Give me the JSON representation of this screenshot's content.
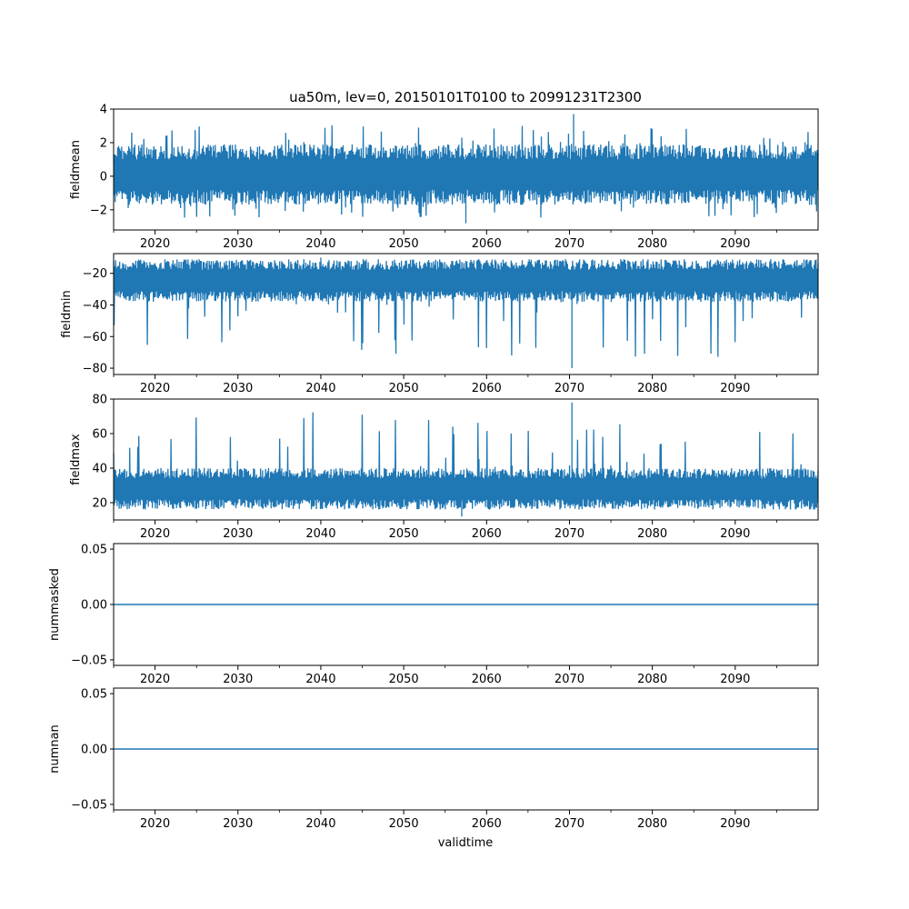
{
  "figure": {
    "title": "ua50m, lev=0, 20150101T0100 to 20991231T2300",
    "xlabel": "validtime"
  },
  "colors": {
    "series": "#1f77b4",
    "axes": "#000000"
  },
  "chart_data": [
    {
      "type": "line",
      "ylabel": "fieldmean",
      "xlim": [
        2015.0,
        2100.0
      ],
      "ylim": [
        -3.2,
        4.0
      ],
      "yticks": [
        "−2",
        "0",
        "2",
        "4"
      ],
      "ytick_values": [
        -2,
        0,
        2,
        4
      ],
      "xticks": [
        "2020",
        "2030",
        "2040",
        "2050",
        "2060",
        "2070",
        "2080",
        "2090"
      ],
      "xtick_values": [
        2020,
        2030,
        2040,
        2050,
        2060,
        2070,
        2080,
        2090
      ],
      "envelope": {
        "upper_typical": 1.9,
        "lower_typical": -1.7,
        "max": 3.7,
        "min": -2.8,
        "max_at": 2070.5,
        "min_at": 2057.5
      },
      "series": [
        {
          "values_summary": "noisy hourly series, mean ~0"
        }
      ]
    },
    {
      "type": "line",
      "ylabel": "fieldmin",
      "xlim": [
        2015.0,
        2100.0
      ],
      "ylim": [
        -84.0,
        -7.5
      ],
      "yticks": [
        "−80",
        "−60",
        "−40",
        "−20"
      ],
      "ytick_values": [
        -80,
        -60,
        -40,
        -20
      ],
      "xticks": [
        "2020",
        "2030",
        "2040",
        "2050",
        "2060",
        "2070",
        "2080",
        "2090"
      ],
      "xtick_values": [
        2020,
        2030,
        2040,
        2050,
        2060,
        2070,
        2080,
        2090
      ],
      "envelope": {
        "upper_typical": -11,
        "lower_typical": -38,
        "max": -10,
        "min": -80,
        "max_at": 2040,
        "min_at": 2070.3
      },
      "series": [
        {
          "values_summary": "noisy hourly series, typical -11 to -38 with seasonal dips"
        }
      ]
    },
    {
      "type": "line",
      "ylabel": "fieldmax",
      "xlim": [
        2015.0,
        2100.0
      ],
      "ylim": [
        10.0,
        80.0
      ],
      "yticks": [
        "20",
        "40",
        "60",
        "80"
      ],
      "ytick_values": [
        20,
        40,
        60,
        80
      ],
      "xticks": [
        "2020",
        "2030",
        "2040",
        "2050",
        "2060",
        "2070",
        "2080",
        "2090"
      ],
      "xtick_values": [
        2020,
        2030,
        2040,
        2050,
        2060,
        2070,
        2080,
        2090
      ],
      "envelope": {
        "upper_typical": 40,
        "lower_typical": 16,
        "max": 78,
        "min": 12,
        "max_at": 2070.3,
        "min_at": 2057
      },
      "series": [
        {
          "values_summary": "noisy hourly series, typical 16 to 40 with seasonal peaks"
        }
      ]
    },
    {
      "type": "line",
      "ylabel": "nummasked",
      "xlim": [
        2015.0,
        2100.0
      ],
      "ylim": [
        -0.055,
        0.055
      ],
      "yticks": [
        "−0.05",
        "0.00",
        "0.05"
      ],
      "ytick_values": [
        -0.05,
        0.0,
        0.05
      ],
      "xticks": [
        "2020",
        "2030",
        "2040",
        "2050",
        "2060",
        "2070",
        "2080",
        "2090"
      ],
      "xtick_values": [
        2020,
        2030,
        2040,
        2050,
        2060,
        2070,
        2080,
        2090
      ],
      "series": [
        {
          "constant": 0.0
        }
      ]
    },
    {
      "type": "line",
      "ylabel": "numnan",
      "xlim": [
        2015.0,
        2100.0
      ],
      "ylim": [
        -0.055,
        0.055
      ],
      "yticks": [
        "−0.05",
        "0.00",
        "0.05"
      ],
      "ytick_values": [
        -0.05,
        0.0,
        0.05
      ],
      "xticks": [
        "2020",
        "2030",
        "2040",
        "2050",
        "2060",
        "2070",
        "2080",
        "2090"
      ],
      "xtick_values": [
        2020,
        2030,
        2040,
        2050,
        2060,
        2070,
        2080,
        2090
      ],
      "series": [
        {
          "constant": 0.0
        }
      ]
    }
  ]
}
